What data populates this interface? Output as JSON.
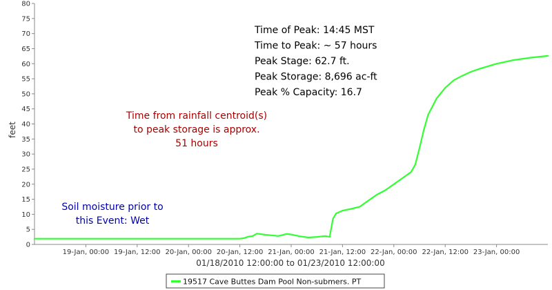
{
  "chart_data": {
    "type": "line",
    "ylabel": "feet",
    "xlabel": "01/18/2010 12:00:00 to 01/23/2010 12:00:00",
    "xlim": [
      "2010-01-18 12:00",
      "2010-01-23 12:00"
    ],
    "ylim": [
      0,
      80
    ],
    "y_ticks": [
      0,
      5,
      10,
      15,
      20,
      25,
      30,
      35,
      40,
      45,
      50,
      55,
      60,
      65,
      70,
      75,
      80
    ],
    "x_ticks": [
      {
        "t": "2010-01-19 00:00",
        "label": "19-Jan, 00:00"
      },
      {
        "t": "2010-01-19 12:00",
        "label": "19-Jan, 12:00"
      },
      {
        "t": "2010-01-20 00:00",
        "label": "20-Jan, 00:00"
      },
      {
        "t": "2010-01-20 12:00",
        "label": "20-Jan, 12:00"
      },
      {
        "t": "2010-01-21 00:00",
        "label": "21-Jan, 00:00"
      },
      {
        "t": "2010-01-21 12:00",
        "label": "21-Jan, 12:00"
      },
      {
        "t": "2010-01-22 00:00",
        "label": "22-Jan, 00:00"
      },
      {
        "t": "2010-01-22 12:00",
        "label": "22-Jan, 12:00"
      },
      {
        "t": "2010-01-23 00:00",
        "label": "23-Jan, 00:00"
      }
    ],
    "grid": false,
    "legend_position": "bottom-center",
    "series": [
      {
        "name": "19517 Cave Buttes Dam Pool Non-submers. PT",
        "color": "#33ff33",
        "points": [
          {
            "t": "2010-01-18 12:00",
            "v": 1.9
          },
          {
            "t": "2010-01-19 12:00",
            "v": 1.9
          },
          {
            "t": "2010-01-20 12:00",
            "v": 1.9
          },
          {
            "t": "2010-01-20 13:00",
            "v": 2.1
          },
          {
            "t": "2010-01-20 14:00",
            "v": 2.6
          },
          {
            "t": "2010-01-20 15:00",
            "v": 2.8
          },
          {
            "t": "2010-01-20 16:00",
            "v": 3.6
          },
          {
            "t": "2010-01-20 18:00",
            "v": 3.2
          },
          {
            "t": "2010-01-20 21:00",
            "v": 2.8
          },
          {
            "t": "2010-01-20 23:00",
            "v": 3.5
          },
          {
            "t": "2010-01-21 00:00",
            "v": 3.3
          },
          {
            "t": "2010-01-21 02:00",
            "v": 2.7
          },
          {
            "t": "2010-01-21 04:00",
            "v": 2.3
          },
          {
            "t": "2010-01-21 06:00",
            "v": 2.5
          },
          {
            "t": "2010-01-21 08:00",
            "v": 2.8
          },
          {
            "t": "2010-01-21 09:00",
            "v": 2.5
          },
          {
            "t": "2010-01-21 09:45",
            "v": 8.5
          },
          {
            "t": "2010-01-21 10:30",
            "v": 10.3
          },
          {
            "t": "2010-01-21 12:00",
            "v": 11.2
          },
          {
            "t": "2010-01-21 14:00",
            "v": 11.8
          },
          {
            "t": "2010-01-21 16:00",
            "v": 12.5
          },
          {
            "t": "2010-01-21 18:00",
            "v": 14.5
          },
          {
            "t": "2010-01-21 20:00",
            "v": 16.5
          },
          {
            "t": "2010-01-21 22:00",
            "v": 18.0
          },
          {
            "t": "2010-01-22 00:00",
            "v": 20.0
          },
          {
            "t": "2010-01-22 02:00",
            "v": 22.0
          },
          {
            "t": "2010-01-22 04:00",
            "v": 24.0
          },
          {
            "t": "2010-01-22 05:00",
            "v": 26.5
          },
          {
            "t": "2010-01-22 06:00",
            "v": 32.0
          },
          {
            "t": "2010-01-22 07:00",
            "v": 38.0
          },
          {
            "t": "2010-01-22 08:00",
            "v": 43.0
          },
          {
            "t": "2010-01-22 10:00",
            "v": 48.5
          },
          {
            "t": "2010-01-22 12:00",
            "v": 52.0
          },
          {
            "t": "2010-01-22 14:00",
            "v": 54.5
          },
          {
            "t": "2010-01-22 16:00",
            "v": 56.0
          },
          {
            "t": "2010-01-22 18:00",
            "v": 57.3
          },
          {
            "t": "2010-01-22 20:00",
            "v": 58.3
          },
          {
            "t": "2010-01-23 00:00",
            "v": 60.0
          },
          {
            "t": "2010-01-23 04:00",
            "v": 61.2
          },
          {
            "t": "2010-01-23 08:00",
            "v": 62.0
          },
          {
            "t": "2010-01-23 12:00",
            "v": 62.6
          }
        ]
      }
    ],
    "annotations": {
      "peak_info": [
        "Time of Peak: 14:45 MST",
        "Time to Peak: ~ 57 hours",
        "Peak Stage: 62.7 ft.",
        "Peak Storage: 8,696 ac-ft",
        "Peak % Capacity: 16.7"
      ],
      "rainfall_note": [
        "Time from rainfall centroid(s)",
        "to peak storage is approx.",
        "51 hours"
      ],
      "soil_note": [
        "Soil moisture prior to",
        "this Event: Wet"
      ]
    },
    "colors": {
      "peak_info": "#000000",
      "rainfall_note": "#aa0000",
      "soil_note": "#0000aa",
      "axis": "#888888"
    }
  }
}
